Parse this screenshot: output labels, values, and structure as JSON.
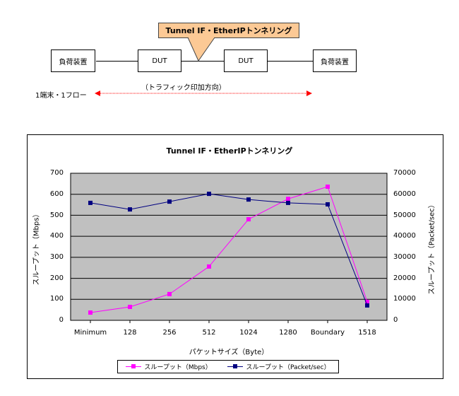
{
  "diagram": {
    "callout_label": "Tunnel IF・EtherIPトンネリング",
    "nodes": [
      {
        "label": "負荷装置"
      },
      {
        "label": "DUT"
      },
      {
        "label": "DUT"
      },
      {
        "label": "負荷装置"
      }
    ],
    "flow_label": "1端末・1フロー",
    "direction_label": "（トラフィック印加方向）",
    "arrow_color": "#ff0000",
    "callout_color": "#fcc995"
  },
  "chart_data": {
    "type": "line",
    "title": "Tunnel IF・EtherIPトンネリング",
    "xlabel": "パケットサイズ（Byte）",
    "ylabel": "スループット（Mbps）",
    "y2label": "スループット（Packet/sec）",
    "categories": [
      "Minimum",
      "128",
      "256",
      "512",
      "1024",
      "1280",
      "Boundary",
      "1518"
    ],
    "ylim": [
      0,
      700
    ],
    "y2lim": [
      0,
      70000
    ],
    "yticks": [
      "0",
      "100",
      "200",
      "300",
      "400",
      "500",
      "600",
      "700"
    ],
    "y2ticks": [
      "0",
      "10000",
      "20000",
      "30000",
      "40000",
      "50000",
      "60000",
      "70000"
    ],
    "grid": true,
    "plot_background": "#c0c0c0",
    "legend_position": "bottom",
    "series": [
      {
        "name": "スループット（Mbps）",
        "axis": "left",
        "color": "#ff00ff",
        "values": [
          37,
          64,
          125,
          256,
          481,
          578,
          636,
          88
        ]
      },
      {
        "name": "スループット（Packet/sec）",
        "axis": "right",
        "color": "#000080",
        "values": [
          55900,
          52800,
          56500,
          60200,
          57500,
          55900,
          55200,
          7100
        ]
      }
    ]
  }
}
